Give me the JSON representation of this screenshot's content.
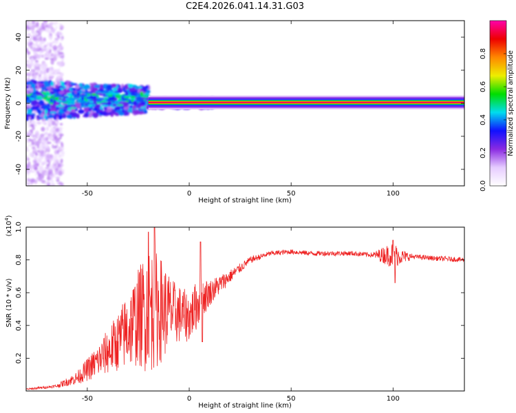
{
  "figure": {
    "title": "C2E4.2026.041.14.31.G03"
  },
  "chart_data": [
    {
      "type": "heatmap",
      "title": "C2E4.2026.041.14.31.G03",
      "xlabel": "Height of straight line (km)",
      "ylabel": "Frequency (Hz)",
      "xlim": [
        -80,
        135
      ],
      "ylim": [
        -50,
        50
      ],
      "xticks": [
        -50,
        0,
        50,
        100
      ],
      "yticks": [
        -40,
        -20,
        0,
        20,
        40
      ],
      "colorbar": {
        "label": "Normalized spectral amplitude",
        "range": [
          0,
          1
        ],
        "ticks": [
          "0.0",
          "0.2",
          "0.4",
          "0.6",
          "0.8"
        ],
        "colormap": [
          "#ffffff",
          "#e6ccff",
          "#8a2be2",
          "#1010ff",
          "#00ddee",
          "#00dd00",
          "#eeee00",
          "#ff8800",
          "#ee0000",
          "#ff00aa"
        ]
      },
      "features": [
        {
          "name": "noisy-spread",
          "x_range": [
            -80,
            -62
          ],
          "freq_range": [
            -50,
            50
          ],
          "amplitude": 0.1
        },
        {
          "name": "broadband-band",
          "x_range": [
            -80,
            -20
          ],
          "freq_range": [
            -8,
            12
          ],
          "amplitude": 0.35
        },
        {
          "name": "tonal-line",
          "x_range": [
            -20,
            135
          ],
          "freq": 0.5,
          "amplitude": 0.95
        }
      ]
    },
    {
      "type": "line",
      "xlabel": "Height of straight line (km)",
      "ylabel": "SNR (10 * v/v)",
      "y_multiplier": "(x10^4)",
      "y_multiplier_base": "(x10",
      "y_multiplier_exp": "4",
      "y_multiplier_close": ")",
      "xlim": [
        -80,
        135
      ],
      "ylim": [
        0,
        1.0
      ],
      "xticks": [
        -50,
        0,
        50,
        100
      ],
      "yticks": [
        "0.2",
        "0.4",
        "0.6",
        "0.8",
        "1.0"
      ],
      "series": [
        {
          "name": "SNR",
          "color": "#ee2222",
          "envelope_x": [
            -80,
            -65,
            -55,
            -45,
            -35,
            -25,
            -20,
            -15,
            -8,
            0,
            5,
            10,
            20,
            30,
            40,
            50,
            60,
            70,
            80,
            90,
            95,
            100,
            105,
            110,
            120,
            135
          ],
          "envelope_y": [
            0.01,
            0.03,
            0.08,
            0.18,
            0.3,
            0.45,
            0.5,
            0.5,
            0.48,
            0.45,
            0.55,
            0.6,
            0.7,
            0.8,
            0.84,
            0.85,
            0.84,
            0.84,
            0.84,
            0.83,
            0.83,
            0.83,
            0.82,
            0.82,
            0.81,
            0.8
          ],
          "noise_amp": [
            0.005,
            0.01,
            0.04,
            0.1,
            0.18,
            0.3,
            0.4,
            0.35,
            0.2,
            0.15,
            0.15,
            0.08,
            0.04,
            0.02,
            0.015,
            0.015,
            0.015,
            0.015,
            0.015,
            0.015,
            0.05,
            0.08,
            0.04,
            0.015,
            0.015,
            0.015
          ],
          "peaks": [
            {
              "x": -17,
              "y": 1.0
            },
            {
              "x": -20,
              "y": 0.97
            },
            {
              "x": 5.5,
              "y": 0.91
            },
            {
              "x": 100,
              "y": 0.92
            },
            {
              "x": 101,
              "y": 0.66
            },
            {
              "x": 6.5,
              "y": 0.3
            }
          ]
        }
      ]
    }
  ]
}
